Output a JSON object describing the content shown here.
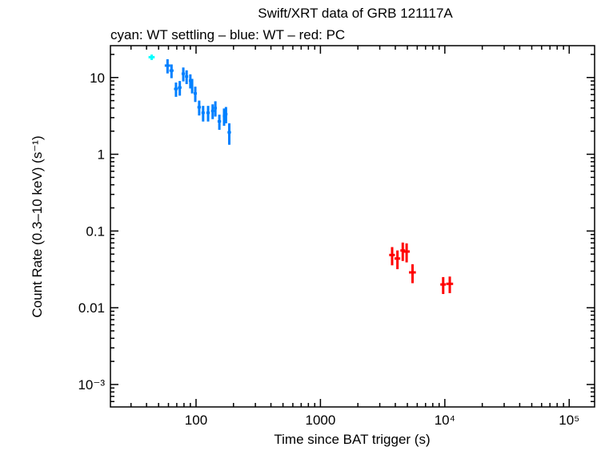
{
  "chart_data": {
    "type": "scatter",
    "title": "Swift/XRT data of GRB 121117A",
    "subtitle": "cyan: WT settling – blue: WT – red: PC",
    "xlabel": "Time since BAT trigger (s)",
    "ylabel": "Count Rate (0.3–10 keV) (s⁻¹)",
    "xscale": "log",
    "yscale": "log",
    "xlim": [
      20.5,
      160000
    ],
    "ylim": [
      0.00051,
      26
    ],
    "grid": false,
    "x_ticks": [
      {
        "value": 100,
        "label": "100"
      },
      {
        "value": 1000,
        "label": "1000"
      },
      {
        "value": 10000,
        "label": "10⁴"
      },
      {
        "value": 100000,
        "label": "10⁵"
      }
    ],
    "y_ticks": [
      {
        "value": 10,
        "label": "10"
      },
      {
        "value": 1,
        "label": "1"
      },
      {
        "value": 0.1,
        "label": "0.1"
      },
      {
        "value": 0.01,
        "label": "0.01"
      },
      {
        "value": 0.001,
        "label": "10⁻³"
      }
    ],
    "series": [
      {
        "color": "#00ffff",
        "x": [
          44
        ],
        "x_err": [
          2.5
        ],
        "y": [
          18.4
        ],
        "y_err": [
          1.5
        ]
      },
      {
        "color": "#0080ff",
        "x": [
          59,
          63.5,
          69,
          74,
          79,
          84,
          90,
          93,
          98.6,
          106,
          114,
          125,
          136,
          143,
          154,
          168,
          174,
          185
        ],
        "x_err": [
          3,
          2.5,
          2.5,
          2.5,
          2.5,
          2.5,
          2.5,
          2,
          3,
          3.5,
          3.5,
          4,
          4,
          4,
          5,
          4,
          5,
          6
        ],
        "y": [
          14.3,
          12.3,
          7.1,
          7.4,
          11.2,
          10.3,
          9.1,
          7.9,
          6.2,
          4.1,
          3.47,
          3.47,
          3.67,
          4.0,
          2.68,
          3.15,
          3.33,
          1.93
        ],
        "y_err": [
          3.0,
          2.5,
          1.5,
          1.6,
          2.3,
          2.1,
          1.9,
          1.7,
          1.4,
          0.9,
          0.8,
          0.8,
          0.8,
          0.9,
          0.6,
          0.8,
          0.8,
          0.6
        ]
      },
      {
        "color": "#ff0000",
        "x": [
          3770,
          4160,
          4590,
          4930,
          5500,
          9700,
          10960
        ],
        "x_err": [
          200,
          220,
          200,
          300,
          350,
          500,
          700
        ],
        "y": [
          0.0487,
          0.0438,
          0.0557,
          0.054,
          0.0289,
          0.0201,
          0.0205
        ],
        "y_err": [
          0.013,
          0.012,
          0.015,
          0.015,
          0.008,
          0.005,
          0.005
        ]
      }
    ]
  }
}
